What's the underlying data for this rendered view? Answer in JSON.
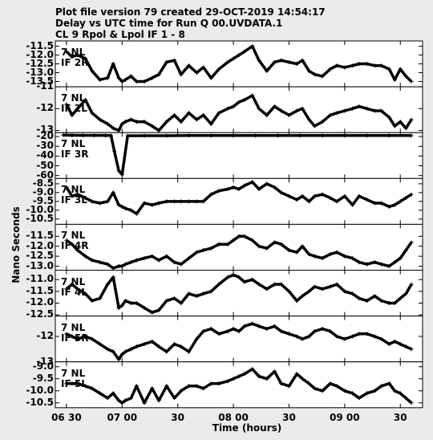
{
  "header": {
    "line1": "Plot file version 79  created 29-OCT-2019 14:54:17",
    "line2": "Delay vs UTC time for Run Q 00.UVDATA.1",
    "line3": "CL 9  Rpol & Lpol  IF 1 - 8"
  },
  "chart_data": {
    "type": "line",
    "title": "Delay vs UTC time for Run Q 00.UVDATA.1",
    "xlabel": "Time (hours)",
    "ylabel": "Nano Seconds",
    "x_ticks": [
      "06 30",
      "07 00",
      "30",
      "08 00",
      "30",
      "09 00",
      "30"
    ],
    "xlim_hours": [
      6.4,
      9.7
    ],
    "x_unit": "UTC hours",
    "marker": "plus",
    "grid": false,
    "panels": [
      {
        "label": [
          "7 NL",
          "IF 2R"
        ],
        "ylim": [
          -13.8,
          -11.2
        ],
        "y_ticks": [
          "-11.5",
          "-12.0",
          "-12.5",
          "-13.0",
          "-13.5"
        ],
        "series": {
          "x": [
            6.5,
            6.55,
            6.6,
            6.67,
            6.73,
            6.8,
            6.87,
            6.92,
            6.97,
            7.0,
            7.03,
            7.08,
            7.13,
            7.2,
            7.27,
            7.33,
            7.4,
            7.47,
            7.53,
            7.6,
            7.67,
            7.73,
            7.8,
            7.87,
            7.95,
            8.0,
            8.05,
            8.1,
            8.17,
            8.23,
            8.3,
            8.37,
            8.43,
            8.5,
            8.57,
            8.62,
            8.68,
            8.73,
            8.8,
            8.87,
            8.93,
            9.0,
            9.07,
            9.13,
            9.2,
            9.27,
            9.33,
            9.4,
            9.45,
            9.5,
            9.55,
            9.6
          ],
          "y": [
            -11.8,
            -12.1,
            -12.0,
            -12.2,
            -12.9,
            -13.4,
            -13.3,
            -12.5,
            -13.3,
            -13.5,
            -13.4,
            -13.2,
            -13.5,
            -13.5,
            -13.3,
            -13.1,
            -12.4,
            -12.3,
            -13.1,
            -12.6,
            -13.0,
            -12.7,
            -13.3,
            -12.8,
            -12.4,
            -12.2,
            -12.0,
            -11.8,
            -11.5,
            -12.3,
            -12.9,
            -12.4,
            -12.3,
            -12.4,
            -12.5,
            -12.3,
            -12.9,
            -13.1,
            -13.2,
            -12.8,
            -12.6,
            -12.7,
            -12.6,
            -12.5,
            -12.5,
            -12.6,
            -12.6,
            -12.8,
            -13.4,
            -12.8,
            -13.2,
            -13.5
          ]
        }
      },
      {
        "label": [
          "7 NL",
          "IF 2L"
        ],
        "ylim": [
          -13.1,
          -11.0
        ],
        "y_ticks": [
          "-11",
          "-12",
          "-13"
        ],
        "series": {
          "x": [
            6.5,
            6.55,
            6.6,
            6.67,
            6.73,
            6.8,
            6.87,
            6.92,
            6.97,
            7.0,
            7.03,
            7.08,
            7.13,
            7.2,
            7.27,
            7.33,
            7.4,
            7.47,
            7.53,
            7.6,
            7.67,
            7.73,
            7.8,
            7.87,
            7.95,
            8.0,
            8.05,
            8.1,
            8.17,
            8.23,
            8.3,
            8.37,
            8.43,
            8.5,
            8.57,
            8.62,
            8.68,
            8.73,
            8.8,
            8.87,
            8.93,
            9.0,
            9.07,
            9.13,
            9.2,
            9.27,
            9.33,
            9.4,
            9.45,
            9.5,
            9.55,
            9.6
          ],
          "y": [
            -11.8,
            -12.3,
            -12.0,
            -11.6,
            -12.2,
            -12.5,
            -12.7,
            -12.9,
            -13.0,
            -12.7,
            -12.6,
            -12.5,
            -12.6,
            -12.6,
            -12.8,
            -13.0,
            -12.6,
            -12.3,
            -12.6,
            -12.2,
            -12.5,
            -12.3,
            -12.7,
            -12.2,
            -12.0,
            -11.9,
            -11.7,
            -11.6,
            -11.4,
            -12.0,
            -12.3,
            -11.9,
            -12.1,
            -12.3,
            -12.1,
            -12.0,
            -12.5,
            -12.8,
            -12.6,
            -12.3,
            -12.2,
            -12.1,
            -12.0,
            -11.9,
            -12.0,
            -12.1,
            -12.1,
            -12.4,
            -12.8,
            -12.6,
            -12.9,
            -12.5
          ]
        }
      },
      {
        "label": [
          "7 NL",
          "IF 3R"
        ],
        "ylim": [
          -63,
          -16
        ],
        "y_ticks": [
          "-20",
          "-30",
          "-40",
          "-50",
          "-60"
        ],
        "series": {
          "x": [
            6.47,
            6.55,
            6.65,
            6.75,
            6.85,
            6.9,
            6.93,
            6.97,
            7.0,
            7.05,
            7.2,
            7.4,
            7.6,
            7.8,
            8.0,
            8.2,
            8.4,
            8.6,
            8.8,
            9.0,
            9.2,
            9.4,
            9.6
          ],
          "y": [
            -18.5,
            -18.7,
            -18.8,
            -18.8,
            -18.9,
            -19.0,
            -35.0,
            -55.0,
            -59.0,
            -19.2,
            -19.1,
            -19.1,
            -19.0,
            -19.0,
            -19.0,
            -19.0,
            -19.0,
            -19.0,
            -19.0,
            -19.0,
            -19.0,
            -19.0,
            -19.0
          ]
        }
      },
      {
        "label": [
          "7 NL",
          "IF 3L"
        ],
        "ylim": [
          -10.8,
          -8.2
        ],
        "y_ticks": [
          "-8.5",
          "-9.0",
          "-9.5",
          "-10.0",
          "-10.5"
        ],
        "series": {
          "x": [
            6.5,
            6.55,
            6.6,
            6.67,
            6.73,
            6.8,
            6.87,
            6.92,
            6.97,
            7.0,
            7.03,
            7.08,
            7.13,
            7.2,
            7.27,
            7.33,
            7.4,
            7.47,
            7.53,
            7.6,
            7.67,
            7.73,
            7.8,
            7.87,
            7.95,
            8.0,
            8.05,
            8.1,
            8.17,
            8.23,
            8.3,
            8.37,
            8.43,
            8.5,
            8.57,
            8.62,
            8.68,
            8.73,
            8.8,
            8.87,
            8.93,
            9.0,
            9.07,
            9.13,
            9.2,
            9.27,
            9.33,
            9.4,
            9.45,
            9.5,
            9.55,
            9.6
          ],
          "y": [
            -8.7,
            -9.2,
            -9.1,
            -9.3,
            -9.5,
            -9.6,
            -9.5,
            -9.0,
            -9.7,
            -9.8,
            -9.9,
            -10.0,
            -10.2,
            -9.6,
            -9.7,
            -9.6,
            -9.5,
            -9.5,
            -9.5,
            -9.5,
            -9.5,
            -9.5,
            -9.1,
            -8.9,
            -8.8,
            -8.7,
            -8.8,
            -8.6,
            -8.4,
            -8.8,
            -8.5,
            -8.7,
            -9.0,
            -9.2,
            -9.4,
            -9.2,
            -9.5,
            -9.2,
            -9.1,
            -9.3,
            -9.5,
            -9.2,
            -9.7,
            -9.2,
            -9.4,
            -9.6,
            -9.6,
            -9.8,
            -9.7,
            -9.5,
            -9.3,
            -9.1
          ]
        }
      },
      {
        "label": [
          "7 NL",
          "IF 4R"
        ],
        "ylim": [
          -13.2,
          -10.9
        ],
        "y_ticks": [
          "-11.5",
          "-12.0",
          "-12.5",
          "-13.0"
        ],
        "series": {
          "x": [
            6.5,
            6.55,
            6.6,
            6.67,
            6.73,
            6.8,
            6.87,
            6.92,
            6.97,
            7.0,
            7.03,
            7.08,
            7.13,
            7.2,
            7.27,
            7.33,
            7.4,
            7.47,
            7.53,
            7.6,
            7.67,
            7.73,
            7.8,
            7.87,
            7.95,
            8.0,
            8.05,
            8.1,
            8.17,
            8.23,
            8.3,
            8.37,
            8.43,
            8.5,
            8.57,
            8.62,
            8.68,
            8.73,
            8.8,
            8.87,
            8.93,
            9.0,
            9.07,
            9.13,
            9.2,
            9.27,
            9.33,
            9.4,
            9.45,
            9.5,
            9.55,
            9.6
          ],
          "y": [
            -11.7,
            -11.9,
            -12.2,
            -12.5,
            -12.7,
            -12.8,
            -12.9,
            -13.1,
            -13.0,
            -13.0,
            -12.9,
            -12.8,
            -12.7,
            -12.6,
            -12.5,
            -12.7,
            -12.5,
            -12.8,
            -12.9,
            -12.6,
            -12.3,
            -12.2,
            -12.1,
            -11.9,
            -11.9,
            -11.7,
            -11.5,
            -11.5,
            -11.7,
            -12.0,
            -12.1,
            -11.8,
            -11.9,
            -12.2,
            -12.3,
            -12.0,
            -12.4,
            -12.5,
            -12.6,
            -12.4,
            -12.3,
            -12.5,
            -12.6,
            -12.8,
            -12.9,
            -12.8,
            -12.9,
            -13.0,
            -12.8,
            -12.6,
            -12.2,
            -11.8
          ]
        }
      },
      {
        "label": [
          "7 NL",
          "IF 4L"
        ],
        "ylim": [
          -12.55,
          -10.6
        ],
        "y_ticks": [
          "-11.0",
          "-11.5",
          "-12.0",
          "-12.5"
        ],
        "series": {
          "x": [
            6.5,
            6.55,
            6.6,
            6.67,
            6.73,
            6.8,
            6.87,
            6.92,
            6.97,
            7.0,
            7.03,
            7.08,
            7.13,
            7.2,
            7.27,
            7.33,
            7.4,
            7.47,
            7.53,
            7.6,
            7.67,
            7.73,
            7.8,
            7.87,
            7.95,
            8.0,
            8.05,
            8.1,
            8.17,
            8.23,
            8.3,
            8.37,
            8.43,
            8.5,
            8.57,
            8.62,
            8.68,
            8.73,
            8.8,
            8.87,
            8.93,
            9.0,
            9.07,
            9.13,
            9.2,
            9.27,
            9.33,
            9.4,
            9.45,
            9.5,
            9.55,
            9.6
          ],
          "y": [
            -11.4,
            -11.2,
            -11.4,
            -11.6,
            -11.9,
            -11.8,
            -11.2,
            -10.9,
            -12.2,
            -12.1,
            -11.9,
            -12.0,
            -12.0,
            -12.2,
            -12.4,
            -12.3,
            -11.9,
            -11.8,
            -12.0,
            -11.6,
            -11.7,
            -11.6,
            -11.5,
            -11.2,
            -10.9,
            -10.8,
            -10.9,
            -11.1,
            -11.0,
            -11.2,
            -11.4,
            -11.2,
            -11.2,
            -11.5,
            -11.9,
            -11.7,
            -11.5,
            -11.3,
            -11.4,
            -11.3,
            -11.2,
            -11.5,
            -11.6,
            -11.8,
            -11.9,
            -11.7,
            -11.9,
            -12.0,
            -12.0,
            -11.8,
            -11.6,
            -11.2
          ]
        }
      },
      {
        "label": [
          "7 NL",
          "IF 5R"
        ],
        "ylim": [
          -13.0,
          -11.2
        ],
        "y_ticks": [
          "-12",
          "-13"
        ],
        "series": {
          "x": [
            6.5,
            6.55,
            6.6,
            6.67,
            6.73,
            6.8,
            6.87,
            6.92,
            6.97,
            7.0,
            7.03,
            7.08,
            7.13,
            7.2,
            7.27,
            7.33,
            7.4,
            7.47,
            7.53,
            7.6,
            7.67,
            7.73,
            7.8,
            7.87,
            7.95,
            8.0,
            8.05,
            8.1,
            8.17,
            8.23,
            8.3,
            8.37,
            8.43,
            8.5,
            8.57,
            8.62,
            8.68,
            8.73,
            8.8,
            8.87,
            8.93,
            9.0,
            9.07,
            9.13,
            9.2,
            9.27,
            9.33,
            9.4,
            9.45,
            9.5,
            9.55,
            9.6
          ],
          "y": [
            -11.9,
            -12.0,
            -12.1,
            -12.0,
            -12.1,
            -12.3,
            -12.5,
            -12.6,
            -12.9,
            -12.7,
            -12.6,
            -12.5,
            -12.4,
            -12.3,
            -12.2,
            -12.4,
            -12.6,
            -12.3,
            -12.4,
            -12.6,
            -12.1,
            -11.8,
            -11.7,
            -11.9,
            -11.8,
            -11.7,
            -11.8,
            -11.6,
            -11.5,
            -11.6,
            -11.7,
            -11.6,
            -11.8,
            -11.9,
            -12.0,
            -12.1,
            -12.0,
            -11.8,
            -11.7,
            -11.8,
            -12.0,
            -12.1,
            -12.0,
            -11.9,
            -11.9,
            -12.0,
            -12.1,
            -12.3,
            -12.2,
            -12.3,
            -12.4,
            -12.5
          ]
        }
      },
      {
        "label": [
          "7 NL",
          "IF 5L"
        ],
        "ylim": [
          -10.7,
          -8.8
        ],
        "y_ticks": [
          "-9.0",
          "-9.5",
          "-10.0",
          "-10.5"
        ],
        "series": {
          "x": [
            6.5,
            6.55,
            6.6,
            6.67,
            6.73,
            6.8,
            6.87,
            6.92,
            6.97,
            7.0,
            7.03,
            7.08,
            7.13,
            7.2,
            7.27,
            7.33,
            7.4,
            7.47,
            7.53,
            7.6,
            7.67,
            7.73,
            7.8,
            7.87,
            7.95,
            8.0,
            8.05,
            8.1,
            8.17,
            8.23,
            8.3,
            8.37,
            8.43,
            8.5,
            8.57,
            8.62,
            8.68,
            8.73,
            8.8,
            8.87,
            8.93,
            9.0,
            9.07,
            9.13,
            9.2,
            9.27,
            9.33,
            9.4,
            9.45,
            9.5,
            9.55,
            9.6
          ],
          "y": [
            -9.7,
            -9.7,
            -9.7,
            -9.8,
            -9.9,
            -10.1,
            -10.3,
            -10.1,
            -10.4,
            -10.5,
            -10.4,
            -10.3,
            -9.8,
            -10.5,
            -9.9,
            -10.4,
            -9.8,
            -10.3,
            -10.0,
            -9.8,
            -9.8,
            -9.9,
            -9.7,
            -9.7,
            -9.6,
            -9.5,
            -9.4,
            -9.3,
            -9.1,
            -9.4,
            -9.5,
            -9.2,
            -9.7,
            -9.8,
            -9.3,
            -9.5,
            -9.7,
            -9.9,
            -10.0,
            -9.7,
            -9.8,
            -10.0,
            -10.1,
            -10.3,
            -10.1,
            -10.0,
            -9.8,
            -9.7,
            -10.0,
            -10.1,
            -10.3,
            -10.5
          ]
        }
      }
    ]
  }
}
